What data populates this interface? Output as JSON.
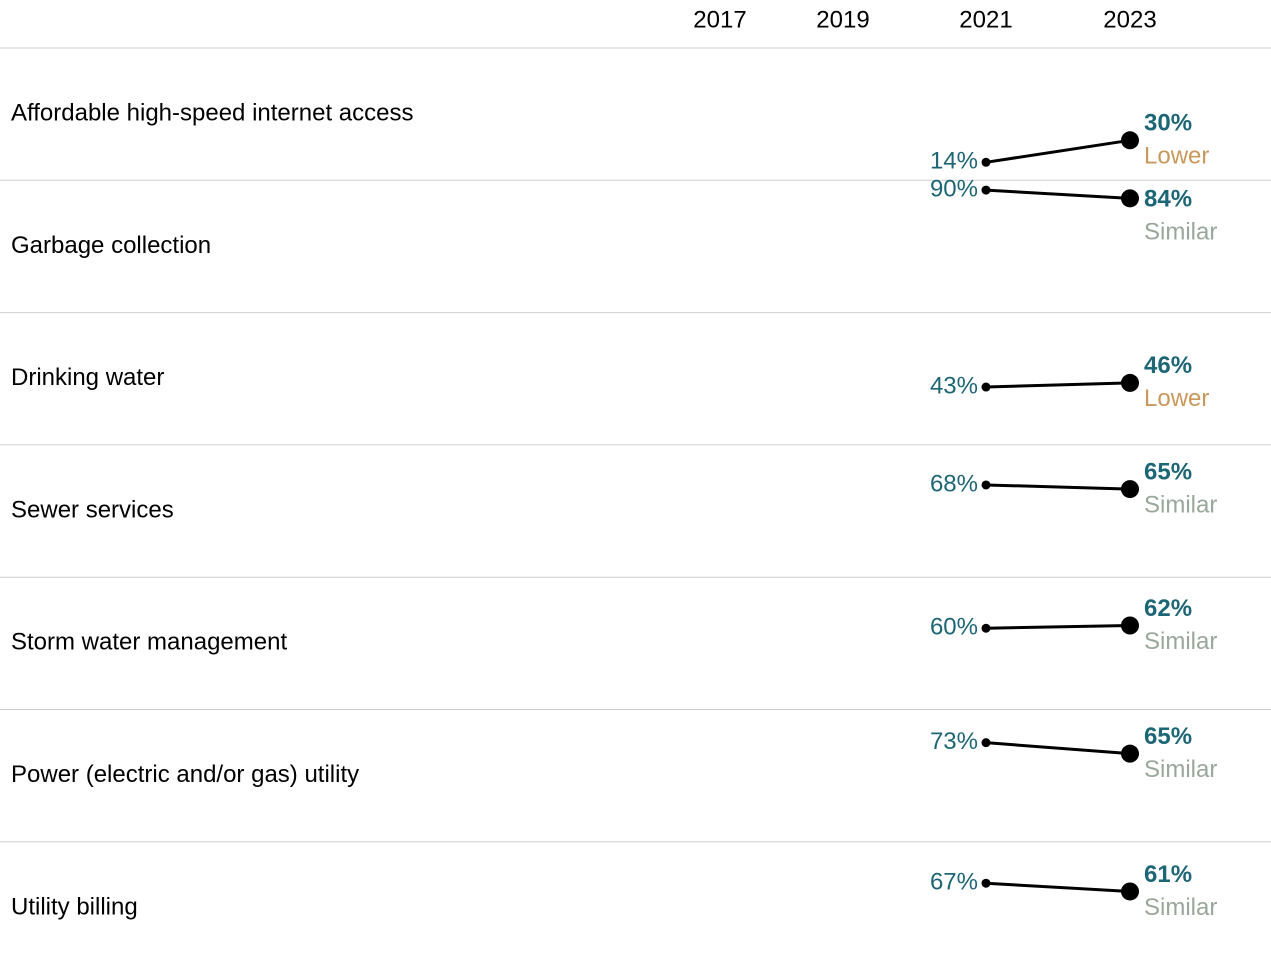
{
  "chart_data": {
    "type": "slope",
    "x": [
      "2017",
      "2019",
      "2021",
      "2023"
    ],
    "ylim": [
      0,
      100
    ],
    "line_color": "#000000",
    "value_color": "#1d6675",
    "comparison_colors": {
      "Lower": "#c9985c",
      "Similar": "#99a79a"
    },
    "series": [
      {
        "name": "Affordable high-speed internet access",
        "values": [
          null,
          null,
          14,
          30
        ],
        "value_labels": [
          null,
          null,
          "14%",
          "30%"
        ],
        "comparison": "Lower"
      },
      {
        "name": "Garbage collection",
        "values": [
          null,
          null,
          90,
          84
        ],
        "value_labels": [
          null,
          null,
          "90%",
          "84%"
        ],
        "comparison": "Similar"
      },
      {
        "name": "Drinking water",
        "values": [
          null,
          null,
          43,
          46
        ],
        "value_labels": [
          null,
          null,
          "43%",
          "46%"
        ],
        "comparison": "Lower"
      },
      {
        "name": "Sewer services",
        "values": [
          null,
          null,
          68,
          65
        ],
        "value_labels": [
          null,
          null,
          "68%",
          "65%"
        ],
        "comparison": "Similar"
      },
      {
        "name": "Storm water management",
        "values": [
          null,
          null,
          60,
          62
        ],
        "value_labels": [
          null,
          null,
          "60%",
          "62%"
        ],
        "comparison": "Similar"
      },
      {
        "name": "Power (electric and/or gas) utility",
        "values": [
          null,
          null,
          73,
          65
        ],
        "value_labels": [
          null,
          null,
          "73%",
          "65%"
        ],
        "comparison": "Similar"
      },
      {
        "name": "Utility billing",
        "values": [
          null,
          null,
          67,
          61
        ],
        "value_labels": [
          null,
          null,
          "67%",
          "61%"
        ],
        "comparison": "Similar"
      }
    ]
  }
}
